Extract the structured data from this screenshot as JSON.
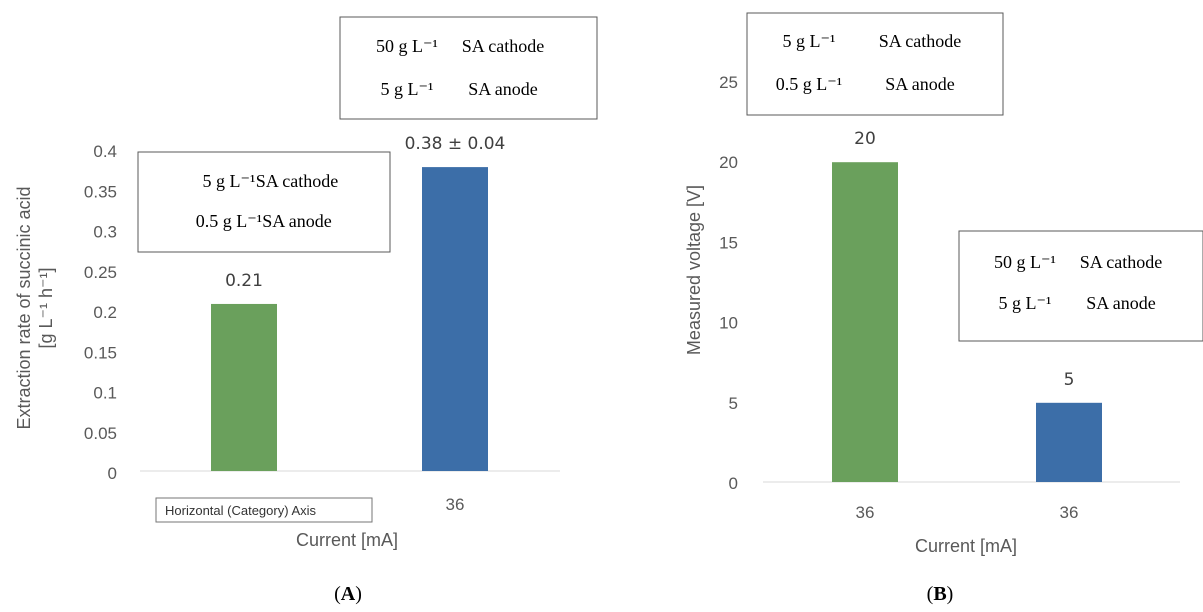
{
  "chart_data": [
    {
      "type": "bar",
      "panel_label": "A",
      "categories": [
        "36",
        "36"
      ],
      "values": [
        0.21,
        0.38
      ],
      "value_labels": [
        "0.21",
        "0.38 ± 0.04"
      ],
      "colors": [
        "#6aa05c",
        "#3c6ea8"
      ],
      "ylabel": "Extraction rate of succinic acid",
      "ylabel_unit": "[g L⁻¹ h⁻¹]",
      "xlabel": "Current [mA]",
      "ylim": [
        0,
        0.4
      ],
      "yticks": [
        "0",
        "0.05",
        "0.1",
        "0.15",
        "0.2",
        "0.25",
        "0.3",
        "0.35",
        "0.4"
      ],
      "grid": false,
      "annotations": [
        {
          "lines": [
            [
              "5 g L⁻¹",
              "SA cathode"
            ],
            [
              "0.5 g L⁻¹",
              "SA anode"
            ]
          ]
        },
        {
          "lines": [
            [
              "50 g L⁻¹",
              "SA cathode"
            ],
            [
              "5 g L⁻¹",
              "SA anode"
            ]
          ]
        }
      ],
      "tooltip": "Horizontal (Category) Axis"
    },
    {
      "type": "bar",
      "panel_label": "B",
      "categories": [
        "36",
        "36"
      ],
      "values": [
        20,
        5
      ],
      "value_labels": [
        "20",
        "5"
      ],
      "colors": [
        "#6aa05c",
        "#3c6ea8"
      ],
      "ylabel": "Measured voltage [V]",
      "xlabel": "Current [mA]",
      "ylim": [
        0,
        25
      ],
      "yticks": [
        "0",
        "5",
        "10",
        "15",
        "20",
        "25"
      ],
      "grid": false,
      "annotations": [
        {
          "lines": [
            [
              "5 g L⁻¹",
              "SA cathode"
            ],
            [
              "0.5 g L⁻¹",
              "SA anode"
            ]
          ]
        },
        {
          "lines": [
            [
              "50 g L⁻¹",
              "SA cathode"
            ],
            [
              "5 g L⁻¹",
              "SA anode"
            ]
          ]
        }
      ]
    }
  ]
}
